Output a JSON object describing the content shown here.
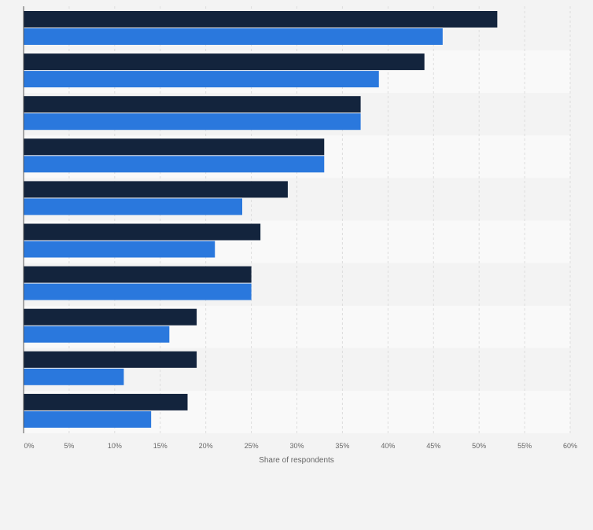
{
  "chart_data": {
    "type": "bar",
    "orientation": "horizontal",
    "categories": [
      "",
      "",
      "",
      "",
      "",
      "",
      "",
      "",
      "",
      ""
    ],
    "series": [
      {
        "values": [
          52,
          44,
          37,
          33,
          29,
          26,
          25,
          19,
          19,
          18
        ],
        "color": "#13243d"
      },
      {
        "values": [
          46,
          39,
          37,
          33,
          24,
          21,
          25,
          16,
          11,
          14
        ],
        "color": "#2a78dd"
      }
    ],
    "xlabel": "Share of respondents",
    "xlim": [
      0,
      60
    ],
    "xticks": [
      "0%",
      "5%",
      "10%",
      "15%",
      "20%",
      "25%",
      "30%",
      "35%",
      "40%",
      "45%",
      "50%",
      "55%",
      "60%"
    ],
    "grid": true,
    "legend": "none"
  },
  "colors": {
    "background": "#f3f3f3",
    "band_light": "#f9f9f9",
    "band_dark": "#f3f3f3",
    "gridline": "#dddddd",
    "tick_text": "#666666"
  }
}
